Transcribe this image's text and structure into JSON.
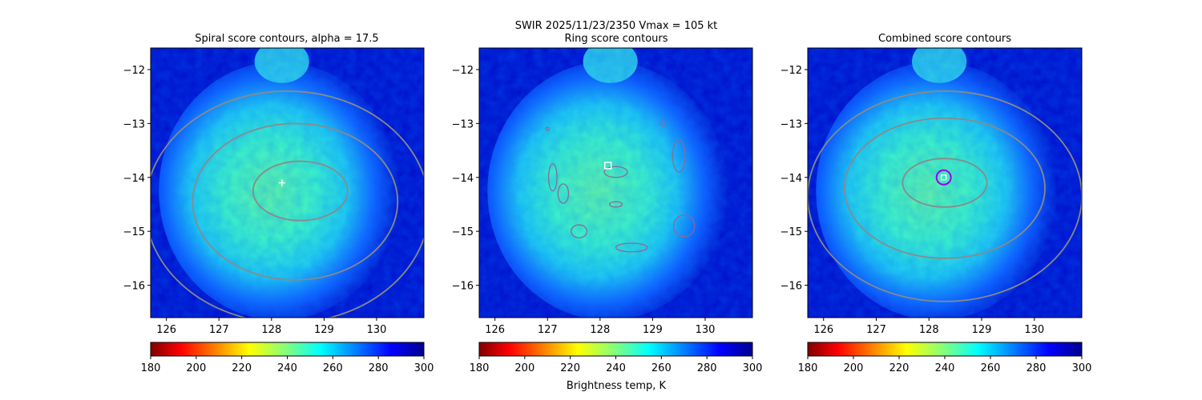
{
  "figure": {
    "suptitle": "SWIR  2025/11/23/2350    Vmax = 105 kt",
    "colorbar_label": "Brightness temp, K"
  },
  "chart_data": [
    {
      "type": "heatmap",
      "title": "Spiral score contours, alpha = 17.5",
      "xlim": [
        125.7,
        130.9
      ],
      "ylim": [
        -16.6,
        -11.6
      ],
      "xticks": [
        126,
        127,
        128,
        129,
        130
      ],
      "yticks": [
        -12,
        -13,
        -14,
        -15,
        -16
      ],
      "colorbar": {
        "cmap": "jet_r",
        "range": [
          180,
          300
        ],
        "ticks": [
          180,
          200,
          220,
          240,
          260,
          280,
          300
        ]
      },
      "contours": [
        {
          "level": "inner",
          "center": [
            128.55,
            -14.25
          ],
          "rx": 0.9,
          "ry": 0.55
        },
        {
          "level": "middle",
          "center": [
            128.45,
            -14.45
          ],
          "rx": 1.95,
          "ry": 1.45
        },
        {
          "level": "outer",
          "center": [
            128.3,
            -14.55
          ],
          "rx": 2.7,
          "ry": 2.15
        }
      ],
      "marker": {
        "type": "plus",
        "x": 128.2,
        "y": -14.1
      }
    },
    {
      "type": "heatmap",
      "title": "Ring score contours",
      "xlim": [
        125.7,
        130.9
      ],
      "ylim": [
        -16.6,
        -11.6
      ],
      "xticks": [
        126,
        127,
        128,
        129,
        130
      ],
      "yticks": [
        -12,
        -13,
        -14,
        -15,
        -16
      ],
      "colorbar": {
        "cmap": "jet_r",
        "range": [
          180,
          300
        ],
        "ticks": [
          180,
          200,
          220,
          240,
          260,
          280,
          300
        ]
      },
      "marker": {
        "type": "square",
        "x": 128.15,
        "y": -13.78
      }
    },
    {
      "type": "heatmap",
      "title": "Combined score contours",
      "xlim": [
        125.7,
        130.9
      ],
      "ylim": [
        -16.6,
        -11.6
      ],
      "xticks": [
        126,
        127,
        128,
        129,
        130
      ],
      "yticks": [
        -12,
        -13,
        -14,
        -15,
        -16
      ],
      "colorbar": {
        "cmap": "jet_r",
        "range": [
          180,
          300
        ],
        "ticks": [
          180,
          200,
          220,
          240,
          260,
          280,
          300
        ]
      },
      "contours": [
        {
          "level": "inner",
          "center": [
            128.3,
            -14.1
          ],
          "rx": 0.8,
          "ry": 0.45
        },
        {
          "level": "middle",
          "center": [
            128.3,
            -14.2
          ],
          "rx": 1.9,
          "ry": 1.3
        },
        {
          "level": "outer",
          "center": [
            128.3,
            -14.35
          ],
          "rx": 2.6,
          "ry": 1.95
        }
      ],
      "marker": {
        "type": "circle",
        "x": 128.28,
        "y": -14.0,
        "color": "#9900ee"
      }
    }
  ]
}
